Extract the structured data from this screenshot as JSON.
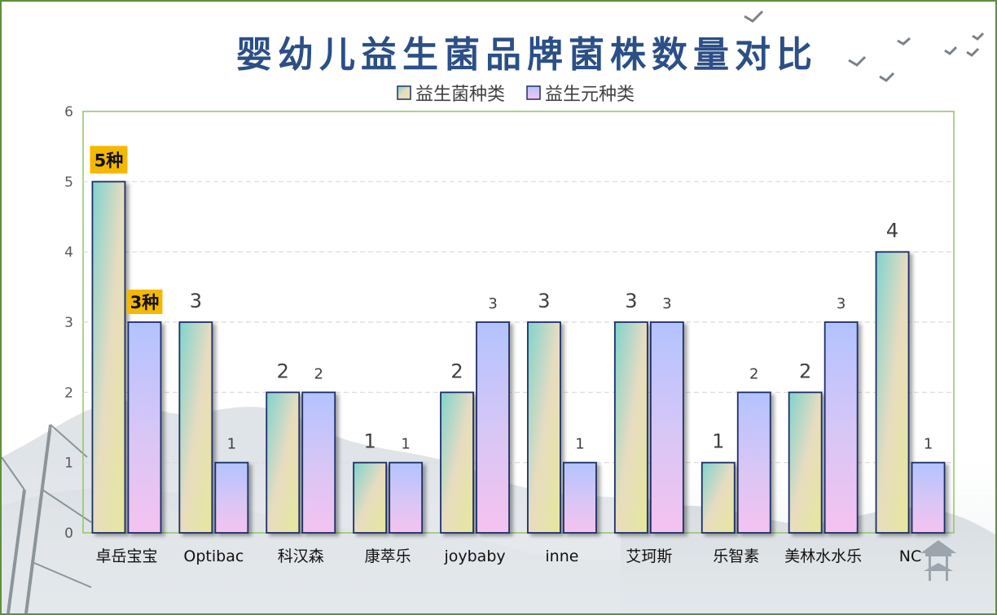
{
  "chart_data": {
    "type": "bar",
    "title": "婴幼儿益生菌品牌菌株数量对比",
    "categories": [
      "卓岳宝宝",
      "Optibac",
      "科汉森",
      "康萃乐",
      "joybaby",
      "inne",
      "艾珂斯",
      "乐智素",
      "美林水水乐",
      "NC"
    ],
    "series": [
      {
        "name": "益生菌种类",
        "values": [
          5,
          3,
          2,
          1,
          2,
          3,
          3,
          1,
          2,
          4
        ]
      },
      {
        "name": "益生元种类",
        "values": [
          3,
          1,
          2,
          1,
          3,
          1,
          3,
          2,
          3,
          1
        ]
      }
    ],
    "ylim": [
      0,
      6
    ],
    "yticks": [
      0,
      1,
      2,
      3,
      4,
      5,
      6
    ],
    "grid": true,
    "legend_position": "top",
    "highlights": [
      {
        "category_index": 0,
        "series_index": 0,
        "label": "5种"
      },
      {
        "category_index": 0,
        "series_index": 1,
        "label": "3种"
      }
    ],
    "colors": {
      "series1_gradient": [
        "#7fd3cf",
        "#e7dcc0",
        "#e6e89a"
      ],
      "series2_gradient": [
        "#b3c3ff",
        "#d9c6f5",
        "#f5c2ef"
      ],
      "bar_border": "#1f2f66",
      "badge": "#f5b800",
      "plot_border": "#92c36b",
      "grid": "#d9d9d9",
      "title": "#2b4f86"
    }
  }
}
